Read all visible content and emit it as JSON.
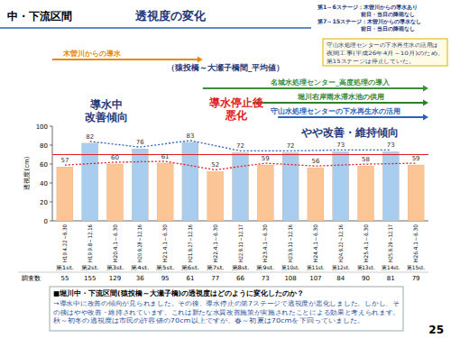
{
  "section": "中・下流区間",
  "conditions": [
    "第1～6ステージ：木曽川からの導水あり",
    "前日・当日の降雨なし",
    "第7～15ステージ：木曽川からの導水なし",
    "前日・当日の降雨なし"
  ],
  "note_box": [
    "守山水処理センターの下水再生水の活用は",
    "夜間工事(平成26年4月～10月)のため、",
    "第15ステージは停止していた。"
  ],
  "chart_data": {
    "type": "bar",
    "title": "透視度の変化",
    "subtitle": "（猿投橋～大瀬子橋間_平均値）",
    "y_label": "透視度(cm)",
    "categories": [
      "H19.4.22～6.30",
      "H19.9.8～12.16",
      "H20.4.1～6.30",
      "H20.9.28～12.16",
      "H21.4.1～6.30",
      "H21.9.27～12.16",
      "H22.4.1～6.30",
      "H22.9.11～12.17",
      "H23.4.1～6.30",
      "H23.9.11～12.16",
      "H24.4.1～6.30",
      "H24.9.22～12.16",
      "H25.4.1～6.30",
      "H25.9.29～12.17",
      "H26.4.1～6.30"
    ],
    "stages": [
      "第1st.",
      "第2st.",
      "第3st.",
      "第4st.",
      "第5st.",
      "第6st.",
      "第7st.",
      "第8st.",
      "第9st.",
      "第10st.",
      "第11st.",
      "第12st.",
      "第13st.",
      "第14st.",
      "第15st."
    ],
    "values": [
      57,
      82,
      60,
      76,
      61,
      83,
      52,
      72,
      59,
      72,
      56,
      73,
      58,
      73,
      59
    ],
    "colors": [
      "#fbc596",
      "#a8cdee",
      "#fbc596",
      "#a8cdee",
      "#fbc596",
      "#a8cdee",
      "#fbc596",
      "#a8cdee",
      "#fbc596",
      "#a8cdee",
      "#fbc596",
      "#a8cdee",
      "#fbc596",
      "#a8cdee",
      "#fbc596"
    ],
    "ylim": [
      0,
      100
    ],
    "yticks": [
      0,
      20,
      40,
      60,
      80,
      100
    ],
    "grid": false,
    "data_labels": true,
    "threshold": 70,
    "count_label": "調査数",
    "counts": [
      55,
      155,
      129,
      36,
      95,
      61,
      77,
      66,
      73,
      108,
      107,
      84,
      90,
      81,
      79
    ],
    "phase_labels": [
      [
        "導水中",
        "改善傾向"
      ],
      [
        "導水停止後",
        "悪化"
      ],
      [
        "やや改善・維持傾向"
      ]
    ],
    "measures": [
      "木曽川からの導水",
      "名城水処理センター_高度処理の導入",
      "堀川右岸雨水滞水池の供用",
      "守山水処理センターの下水再生水の活用"
    ]
  },
  "summary": {
    "question": "■堀川中・下流区間(猿投橋～大瀬子橋)の透視度はどのように変化したのか？",
    "answer": "→導水中に改善の傾向が見られました。その後、導水停止の第7ステージで透視度が悪化しました。しかし、その後はやや改善・維持されています。これは新たな水質改善施策が実施されたことによる効果と考えられます。秋～初冬の透視度は市民の許容値の70cm以上ですが、春～初夏は70cmを下回っていました。"
  },
  "page_number": 25
}
